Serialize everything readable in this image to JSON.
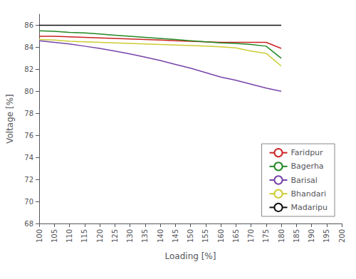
{
  "chart_data": {
    "type": "line",
    "xlabel": "Loading [%]",
    "ylabel": "Voltage [%]",
    "xlim": [
      100,
      200
    ],
    "ylim": [
      68,
      87
    ],
    "xticks": [
      100,
      105,
      110,
      115,
      120,
      125,
      130,
      135,
      140,
      145,
      150,
      155,
      160,
      165,
      170,
      175,
      180,
      185,
      190,
      195,
      200
    ],
    "yticks": [
      68,
      70,
      72,
      74,
      76,
      78,
      80,
      82,
      84,
      86
    ],
    "grid": false,
    "legend": "lower right",
    "series": [
      {
        "name": "Faridpur",
        "color": "#cc2222",
        "x": [
          100,
          105,
          110,
          115,
          120,
          125,
          130,
          135,
          140,
          145,
          150,
          155,
          160,
          165,
          170,
          175,
          180
        ],
        "values": [
          85.0,
          85.0,
          84.95,
          84.9,
          84.85,
          84.8,
          84.75,
          84.7,
          84.65,
          84.6,
          84.55,
          84.5,
          84.45,
          84.45,
          84.45,
          84.45,
          83.9
        ]
      },
      {
        "name": "Bagerha",
        "color": "#228822",
        "x": [
          100,
          105,
          110,
          115,
          120,
          125,
          130,
          135,
          140,
          145,
          150,
          155,
          160,
          165,
          170,
          175,
          180
        ],
        "values": [
          85.5,
          85.45,
          85.35,
          85.3,
          85.2,
          85.1,
          85.0,
          84.9,
          84.8,
          84.7,
          84.6,
          84.5,
          84.4,
          84.35,
          84.25,
          84.1,
          83.0
        ]
      },
      {
        "name": "Barisal",
        "color": "#7744aa",
        "x": [
          100,
          105,
          110,
          115,
          120,
          125,
          130,
          135,
          140,
          145,
          150,
          155,
          160,
          165,
          170,
          175,
          180
        ],
        "values": [
          84.6,
          84.45,
          84.3,
          84.1,
          83.9,
          83.65,
          83.4,
          83.1,
          82.8,
          82.45,
          82.1,
          81.7,
          81.3,
          81.0,
          80.65,
          80.3,
          80.0
        ]
      },
      {
        "name": "Bhandari",
        "color": "#cccc33",
        "x": [
          100,
          105,
          110,
          115,
          120,
          125,
          130,
          135,
          140,
          145,
          150,
          155,
          160,
          165,
          170,
          175,
          180
        ],
        "values": [
          84.7,
          84.65,
          84.55,
          84.5,
          84.45,
          84.4,
          84.35,
          84.3,
          84.25,
          84.2,
          84.15,
          84.1,
          84.05,
          83.95,
          83.65,
          83.45,
          82.3
        ]
      },
      {
        "name": "Madaripu",
        "color": "#111111",
        "x": [
          100,
          180
        ],
        "values": [
          86.0,
          86.0
        ]
      }
    ]
  }
}
